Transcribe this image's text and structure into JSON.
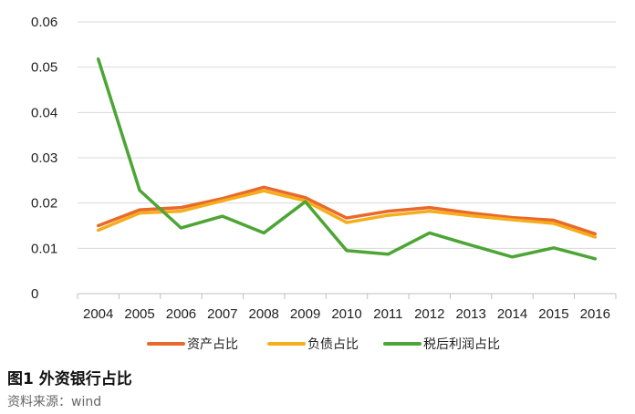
{
  "caption": {
    "title": "图1 外资银行占比",
    "source": "资料来源：wind"
  },
  "chart_data": {
    "type": "line",
    "title": "",
    "xlabel": "",
    "ylabel": "",
    "ylim": [
      0,
      0.06
    ],
    "yticks": [
      "0",
      "0.01",
      "0.02",
      "0.03",
      "0.04",
      "0.05",
      "0.06"
    ],
    "grid": true,
    "legend_position": "bottom",
    "categories": [
      "2004",
      "2005",
      "2006",
      "2007",
      "2008",
      "2009",
      "2010",
      "2011",
      "2012",
      "2013",
      "2014",
      "2015",
      "2016"
    ],
    "series": [
      {
        "name": "资产占比",
        "color": "#e8692b",
        "values": [
          0.015,
          0.0185,
          0.019,
          0.021,
          0.0235,
          0.0212,
          0.0167,
          0.0182,
          0.019,
          0.0178,
          0.0168,
          0.0162,
          0.0132
        ]
      },
      {
        "name": "负债占比",
        "color": "#f5ad1b",
        "values": [
          0.014,
          0.0178,
          0.0182,
          0.0205,
          0.0227,
          0.0205,
          0.0157,
          0.0173,
          0.0182,
          0.0172,
          0.0163,
          0.0155,
          0.0125
        ]
      },
      {
        "name": "税后利润占比",
        "color": "#4ca535",
        "values": [
          0.0518,
          0.0228,
          0.0145,
          0.0171,
          0.0134,
          0.0203,
          0.0095,
          0.0087,
          0.0134,
          0.0107,
          0.0081,
          0.0101,
          0.0077
        ]
      }
    ]
  }
}
